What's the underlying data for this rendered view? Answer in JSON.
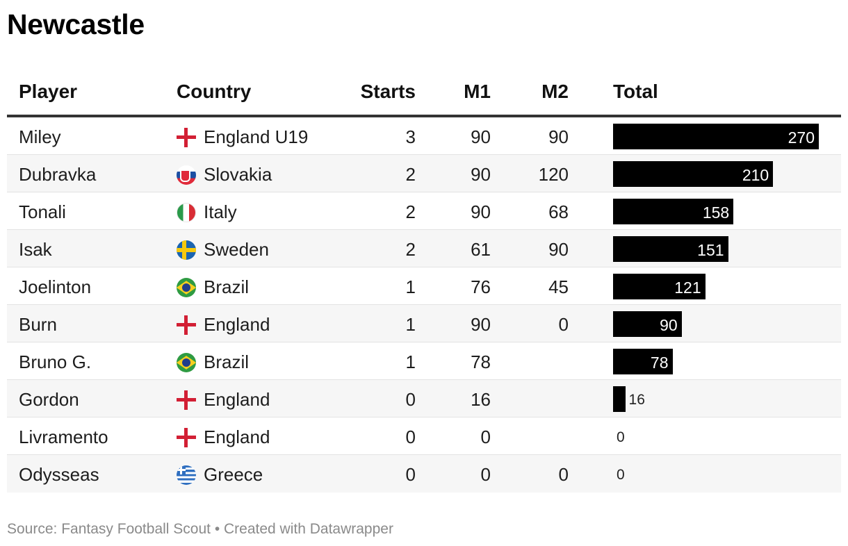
{
  "title": "Newcastle",
  "columns": {
    "player": "Player",
    "country": "Country",
    "starts": "Starts",
    "m1": "M1",
    "m2": "M2",
    "total": "Total"
  },
  "rows": [
    {
      "player": "Miley",
      "flag": "england",
      "country": "England U19",
      "starts": "3",
      "m1": "90",
      "m2": "90",
      "total": "270"
    },
    {
      "player": "Dubravka",
      "flag": "slovakia",
      "country": "Slovakia",
      "starts": "2",
      "m1": "90",
      "m2": "120",
      "total": "210"
    },
    {
      "player": "Tonali",
      "flag": "italy",
      "country": "Italy",
      "starts": "2",
      "m1": "90",
      "m2": "68",
      "total": "158"
    },
    {
      "player": "Isak",
      "flag": "sweden",
      "country": "Sweden",
      "starts": "2",
      "m1": "61",
      "m2": "90",
      "total": "151"
    },
    {
      "player": "Joelinton",
      "flag": "brazil",
      "country": "Brazil",
      "starts": "1",
      "m1": "76",
      "m2": "45",
      "total": "121"
    },
    {
      "player": "Burn",
      "flag": "england",
      "country": "England",
      "starts": "1",
      "m1": "90",
      "m2": "0",
      "total": "90"
    },
    {
      "player": "Bruno G.",
      "flag": "brazil",
      "country": "Brazil",
      "starts": "1",
      "m1": "78",
      "m2": "",
      "total": "78"
    },
    {
      "player": "Gordon",
      "flag": "england",
      "country": "England",
      "starts": "0",
      "m1": "16",
      "m2": "",
      "total": "16"
    },
    {
      "player": "Livramento",
      "flag": "england",
      "country": "England",
      "starts": "0",
      "m1": "0",
      "m2": "",
      "total": "0"
    },
    {
      "player": "Odysseas",
      "flag": "greece",
      "country": "Greece",
      "starts": "0",
      "m1": "0",
      "m2": "0",
      "total": "0"
    }
  ],
  "chart_data": {
    "type": "table",
    "title": "Newcastle",
    "columns": [
      "Player",
      "Country",
      "Starts",
      "M1",
      "M2",
      "Total"
    ],
    "categories": [
      "Miley",
      "Dubravka",
      "Tonali",
      "Isak",
      "Joelinton",
      "Burn",
      "Bruno G.",
      "Gordon",
      "Livramento",
      "Odysseas"
    ],
    "series": [
      {
        "name": "Starts",
        "values": [
          3,
          2,
          2,
          2,
          1,
          1,
          1,
          0,
          0,
          0
        ]
      },
      {
        "name": "M1",
        "values": [
          90,
          90,
          90,
          61,
          76,
          90,
          78,
          16,
          0,
          0
        ]
      },
      {
        "name": "M2",
        "values": [
          90,
          120,
          68,
          90,
          45,
          0,
          null,
          null,
          null,
          0
        ]
      },
      {
        "name": "Total",
        "values": [
          270,
          210,
          158,
          151,
          121,
          90,
          78,
          16,
          0,
          0
        ]
      }
    ],
    "total_bar_color": "#000000",
    "grid": false
  },
  "footer": {
    "text": "Source: Fantasy Football Scout • Created with Datawrapper"
  }
}
